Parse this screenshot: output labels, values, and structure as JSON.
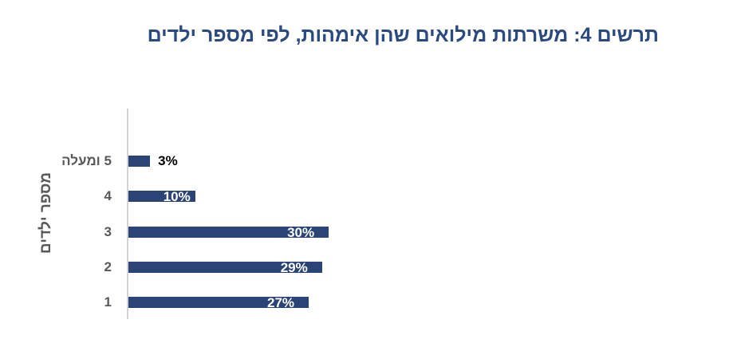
{
  "chart_data": {
    "type": "bar",
    "orientation": "horizontal",
    "title": "תרשים 4: משרתות מילואים שהן אימהות, לפי מספר ילדים",
    "xlabel": "",
    "ylabel": "מספר ילדים",
    "categories": [
      "5 ומעלה",
      "4",
      "3",
      "2",
      "1"
    ],
    "values": [
      3,
      10,
      30,
      29,
      27
    ],
    "value_labels": [
      "3%",
      "10%",
      "30%",
      "29%",
      "27%"
    ],
    "unit": "%",
    "xlim": [
      0,
      31
    ],
    "grid": false,
    "legend": null,
    "bar_color": "#2a4478"
  },
  "colors": {
    "title": "#2a4a80",
    "bar": "#2a4478",
    "axis": "#d4d4d4",
    "label": "#595959"
  }
}
